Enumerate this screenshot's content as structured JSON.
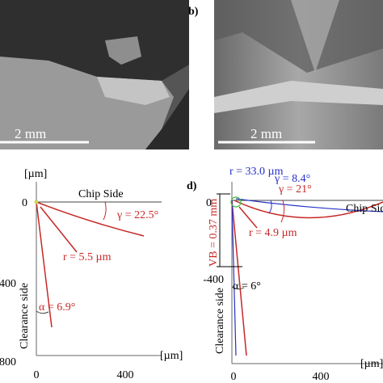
{
  "micrographs": {
    "a_scale": "2 mm",
    "b_label": "b)",
    "b_scale": "2 mm"
  },
  "diagram_c": {
    "y_unit": "[µm]",
    "y_ticks": [
      "0",
      "400",
      "800"
    ],
    "x_ticks": [
      "0",
      "400"
    ],
    "x_unit": "[µm]",
    "chip_side": "Chip Side",
    "gamma": "γ = 22.5°",
    "radius": "r = 5.5 µm",
    "alpha": "α = 6.9°",
    "clearance": "Clearance side"
  },
  "diagram_d": {
    "label": "d)",
    "radius_blue": "r = 33.0 µm",
    "gamma_blue": "γ = 8.4°",
    "gamma_red": "γ = 21°",
    "chip_side": "Chip Side",
    "y_ticks": [
      "0",
      "-400"
    ],
    "x_ticks": [
      "0",
      "400"
    ],
    "x_unit": "[µm]",
    "wear": "VB = 0.37 mm",
    "radius_red": "r = 4.9 µm",
    "alpha": "α = 6°",
    "clearance": "Clearance side"
  }
}
